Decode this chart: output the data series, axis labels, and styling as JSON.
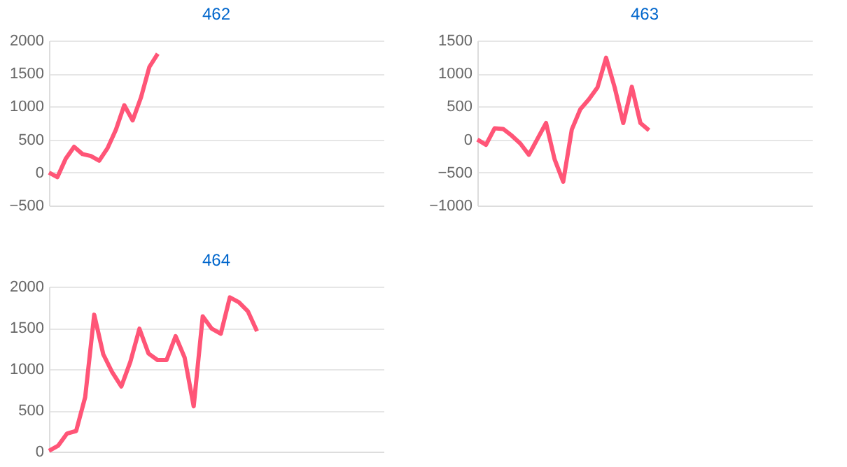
{
  "chart_data": [
    {
      "type": "line",
      "title": "462",
      "categories": [
        null,
        null,
        null,
        null,
        null,
        null,
        null,
        null,
        null,
        null,
        null,
        null,
        null,
        null,
        null,
        null,
        null,
        null,
        null,
        null,
        null,
        null,
        null,
        null,
        null,
        null,
        null,
        null,
        null,
        null,
        null,
        null,
        null,
        null,
        null,
        null,
        null,
        null,
        null,
        null,
        null
      ],
      "series": [
        {
          "color": "#ff5577",
          "values": [
            0,
            -70,
            210,
            390,
            280,
            250,
            180,
            370,
            650,
            1020,
            790,
            1140,
            1600,
            1800,
            null,
            null,
            null,
            null,
            null,
            null,
            null,
            null,
            null,
            null,
            null,
            null,
            null,
            null,
            null,
            null,
            null,
            null,
            null,
            null,
            null,
            null,
            null,
            null,
            null,
            null,
            null
          ]
        }
      ],
      "ylim": [
        -500,
        2000
      ],
      "yticks": [
        -500,
        0,
        500,
        1000,
        1500,
        2000
      ],
      "grid": "y",
      "tick_labels": "y",
      "marker": "none"
    },
    {
      "type": "line",
      "title": "463",
      "categories": [
        null,
        null,
        null,
        null,
        null,
        null,
        null,
        null,
        null,
        null,
        null,
        null,
        null,
        null,
        null,
        null,
        null,
        null,
        null,
        null,
        null,
        null,
        null,
        null,
        null,
        null,
        null,
        null,
        null,
        null,
        null,
        null,
        null,
        null,
        null,
        null,
        null,
        null,
        null,
        null
      ],
      "series": [
        {
          "color": "#ff5577",
          "values": [
            0,
            -80,
            170,
            160,
            60,
            -60,
            -230,
            10,
            250,
            -300,
            -640,
            150,
            460,
            610,
            790,
            1240,
            790,
            250,
            800,
            250,
            140,
            null,
            null,
            null,
            null,
            null,
            null,
            null,
            null,
            null,
            null,
            null,
            null,
            null,
            null,
            null,
            null,
            null,
            null,
            null
          ]
        }
      ],
      "ylim": [
        -1000,
        1500
      ],
      "yticks": [
        -1000,
        -500,
        0,
        500,
        1000,
        1500
      ],
      "grid": "y",
      "tick_labels": "y",
      "marker": "none"
    },
    {
      "type": "line",
      "title": "464",
      "categories": [
        null,
        null,
        null,
        null,
        null,
        null,
        null,
        null,
        null,
        null,
        null,
        null,
        null,
        null,
        null,
        null,
        null,
        null,
        null,
        null,
        null,
        null,
        null,
        null,
        null,
        null,
        null,
        null,
        null,
        null,
        null,
        null,
        null,
        null,
        null,
        null,
        null,
        null
      ],
      "series": [
        {
          "color": "#ff5577",
          "values": [
            10,
            70,
            220,
            250,
            660,
            1660,
            1180,
            960,
            790,
            1090,
            1490,
            1190,
            1110,
            1110,
            1400,
            1140,
            550,
            1640,
            1490,
            1430,
            1870,
            1810,
            1700,
            1460,
            null,
            null,
            null,
            null,
            null,
            null,
            null,
            null,
            null,
            null,
            null,
            null,
            null,
            null
          ]
        }
      ],
      "ylim": [
        0,
        2000
      ],
      "yticks": [
        0,
        500,
        1000,
        1500,
        2000
      ],
      "grid": "y",
      "tick_labels": "y",
      "marker": "none"
    }
  ]
}
